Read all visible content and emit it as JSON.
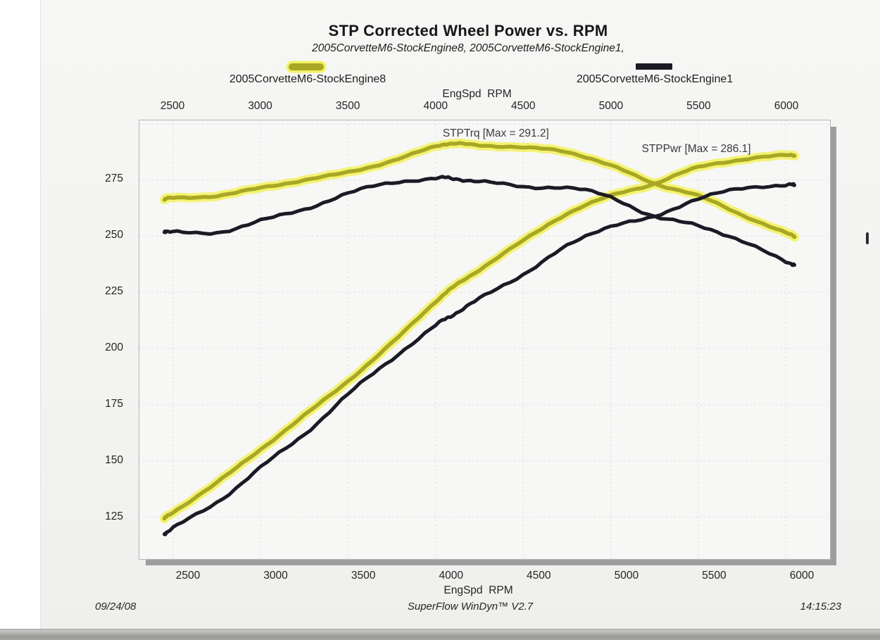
{
  "page": {
    "date": "09/24/08",
    "time": "14:15:23",
    "software": "SuperFlow WinDyn™ V2.7"
  },
  "chart_data": {
    "type": "line",
    "title": "STP Corrected Wheel Power vs. RPM",
    "subtitle": "2005CorvetteM6-StockEngine8, 2005CorvetteM6-StockEngine1,",
    "xlabel_top": "EngSpd  RPM",
    "xlabel_bottom": "EngSpd  RPM",
    "x_ticks": [
      2500,
      3000,
      3500,
      4000,
      4500,
      5000,
      5500,
      6000
    ],
    "y_ticks": [
      275,
      250,
      225,
      200,
      175,
      150,
      125
    ],
    "xlim": [
      2307,
      6253
    ],
    "ylim": [
      106,
      302
    ],
    "grid": "dotted",
    "legend": [
      {
        "label": "2005CorvetteM6-StockEngine8",
        "pen": "yellow"
      },
      {
        "label": "2005CorvetteM6-StockEngine1",
        "pen": "dark"
      }
    ],
    "annotations": [
      {
        "text": "STPTrq [Max = 291.2]",
        "x": 4040,
        "y": 294.3
      },
      {
        "text": "STPPwr [Max = 286.1]",
        "x": 5177,
        "y": 287.5
      }
    ],
    "colors": {
      "yellow_core": "#a8a825",
      "yellow_halo": "#f3f266",
      "dark": "#1b1b26",
      "grid": "#d0d0da",
      "annotation": "#3a3a3a"
    },
    "x": [
      2450,
      2500,
      2750,
      3000,
      3250,
      3500,
      3750,
      4000,
      4100,
      4250,
      4500,
      4750,
      5000,
      5250,
      5500,
      5750,
      6000,
      6050
    ],
    "series": [
      {
        "name": "STPTrq",
        "short": "trq8",
        "run": "2005CorvetteM6-StockEngine8",
        "pen": "yellow",
        "max": 291.2,
        "values": [
          266.5,
          267,
          268,
          271.5,
          275,
          278.5,
          283.5,
          290,
          291.2,
          290.5,
          289.5,
          287.5,
          281.5,
          273.5,
          268,
          259.5,
          251.5,
          250
        ]
      },
      {
        "name": "STPPwr",
        "short": "pwr8",
        "run": "2005CorvetteM6-StockEngine8",
        "pen": "yellow",
        "max": 286.1,
        "values": [
          124.3,
          127.1,
          140.3,
          155.1,
          170.2,
          185.6,
          202.4,
          220.9,
          227.3,
          235.1,
          248.0,
          260.0,
          268.0,
          273.4,
          280.7,
          284.1,
          286.1,
          286.0
        ]
      },
      {
        "name": "STPTrq",
        "short": "trq1",
        "run": "2005CorvetteM6-StockEngine1",
        "pen": "dark",
        "values": [
          251.5,
          252.5,
          251,
          257.5,
          261.5,
          269.5,
          273.5,
          276,
          275.5,
          274.5,
          272,
          271.5,
          267.5,
          258.5,
          255,
          247.5,
          239,
          237
        ]
      },
      {
        "name": "STPPwr",
        "short": "pwr1",
        "run": "2005CorvetteM6-StockEngine1",
        "pen": "dark",
        "values": [
          117.3,
          120.2,
          131.4,
          147.1,
          161.8,
          179.6,
          195.3,
          210.2,
          215.1,
          222.1,
          233.1,
          245.5,
          254.7,
          258.4,
          267.0,
          271.0,
          273.0,
          272.5
        ]
      }
    ]
  }
}
